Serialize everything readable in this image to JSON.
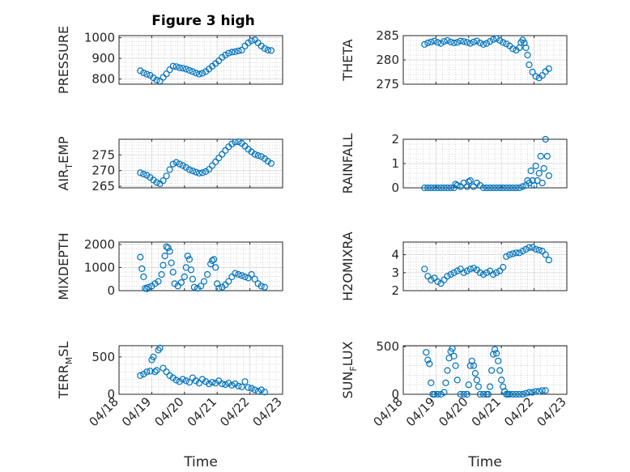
{
  "figure": {
    "title": "Figure 3 high"
  },
  "colors": {
    "marker": "#0072BD",
    "axes": "#262626"
  },
  "chart_data": [
    {
      "type": "scatter",
      "panel": "top-left",
      "title": "Figure 3 high",
      "ylabel": "PRESSURE",
      "ylim": [
        775,
        1010
      ],
      "yticks": [
        800,
        900,
        1000
      ],
      "xlim": [
        "04/18",
        "04/23"
      ],
      "x_tick_labels": [],
      "grid": true,
      "marker": "open-circle",
      "t": [
        0.65,
        0.75,
        0.85,
        0.95,
        1.05,
        1.15,
        1.25,
        1.35,
        1.45,
        1.55,
        1.65,
        1.75,
        1.85,
        1.95,
        2.05,
        2.15,
        2.25,
        2.35,
        2.45,
        2.55,
        2.65,
        2.75,
        2.85,
        2.95,
        3.05,
        3.15,
        3.25,
        3.35,
        3.45,
        3.55,
        3.65,
        3.75,
        3.85,
        3.95,
        4.05,
        4.15,
        4.25,
        4.35,
        4.45,
        4.55,
        4.65
      ],
      "y": [
        840,
        830,
        823,
        818,
        806,
        795,
        790,
        808,
        825,
        845,
        862,
        860,
        855,
        852,
        848,
        842,
        836,
        829,
        824,
        828,
        836,
        848,
        862,
        875,
        888,
        905,
        916,
        925,
        930,
        932,
        936,
        940,
        960,
        975,
        985,
        990,
        975,
        960,
        948,
        940,
        938
      ]
    },
    {
      "type": "scatter",
      "panel": "top-right",
      "ylabel": "THETA",
      "ylim": [
        275,
        285
      ],
      "yticks": [
        275,
        280,
        285
      ],
      "xlim": [
        "04/18",
        "04/23"
      ],
      "x_tick_labels": [],
      "grid": true,
      "marker": "open-circle",
      "t": [
        0.65,
        0.75,
        0.85,
        0.95,
        1.05,
        1.15,
        1.25,
        1.35,
        1.45,
        1.55,
        1.65,
        1.75,
        1.85,
        1.95,
        2.05,
        2.15,
        2.25,
        2.35,
        2.45,
        2.55,
        2.65,
        2.75,
        2.85,
        2.95,
        3.05,
        3.15,
        3.25,
        3.35,
        3.45,
        3.55,
        3.6,
        3.65,
        3.7,
        3.75,
        3.8,
        3.85,
        3.95,
        4.05,
        4.15,
        4.25,
        4.35,
        4.45
      ],
      "y": [
        283.2,
        283.5,
        283.7,
        283.9,
        283.6,
        283.4,
        283.8,
        284.0,
        283.7,
        283.5,
        283.6,
        283.9,
        283.8,
        283.6,
        283.4,
        283.7,
        283.9,
        283.5,
        283.2,
        283.4,
        283.8,
        284.2,
        284.4,
        284.0,
        283.6,
        283.3,
        282.9,
        282.3,
        282.0,
        282.5,
        283.6,
        284.1,
        283.5,
        282.5,
        281.0,
        279.0,
        277.5,
        276.6,
        276.3,
        276.8,
        277.6,
        278.2
      ]
    },
    {
      "type": "scatter",
      "panel": "second-left",
      "ylabel": "AIR_TEMP",
      "ylim": [
        264.5,
        280
      ],
      "yticks": [
        265,
        270,
        275
      ],
      "xlim": [
        "04/18",
        "04/23"
      ],
      "x_tick_labels": [],
      "grid": true,
      "marker": "open-circle",
      "t": [
        0.65,
        0.75,
        0.85,
        0.95,
        1.05,
        1.15,
        1.25,
        1.35,
        1.45,
        1.55,
        1.65,
        1.75,
        1.85,
        1.95,
        2.05,
        2.15,
        2.25,
        2.35,
        2.45,
        2.55,
        2.65,
        2.75,
        2.85,
        2.95,
        3.05,
        3.15,
        3.25,
        3.35,
        3.45,
        3.55,
        3.65,
        3.75,
        3.85,
        3.95,
        4.05,
        4.15,
        4.25,
        4.35,
        4.45,
        4.55,
        4.65
      ],
      "y": [
        269.3,
        268.9,
        268.5,
        267.8,
        267.0,
        266.2,
        265.8,
        266.8,
        268.3,
        270.3,
        272.1,
        272.6,
        272.1,
        271.6,
        271.0,
        270.3,
        269.9,
        269.5,
        269.2,
        269.3,
        269.7,
        270.4,
        271.6,
        272.8,
        274.0,
        275.2,
        276.4,
        277.6,
        278.5,
        279.1,
        279.2,
        278.7,
        277.8,
        276.8,
        276.0,
        275.2,
        274.8,
        274.5,
        273.8,
        273.0,
        272.3
      ]
    },
    {
      "type": "scatter",
      "panel": "second-right",
      "ylabel": "RAINFALL",
      "ylim": [
        0,
        2
      ],
      "yticks": [
        0,
        1,
        2
      ],
      "xlim": [
        "04/18",
        "04/23"
      ],
      "x_tick_labels": [],
      "grid": true,
      "marker": "open-circle",
      "t": [
        0.65,
        0.75,
        0.85,
        0.95,
        1.05,
        1.15,
        1.25,
        1.35,
        1.45,
        1.55,
        1.6,
        1.65,
        1.75,
        1.85,
        1.95,
        2.0,
        2.05,
        2.15,
        2.25,
        2.35,
        2.45,
        2.55,
        2.65,
        2.75,
        2.85,
        2.95,
        3.05,
        3.15,
        3.25,
        3.35,
        3.45,
        3.55,
        3.65,
        3.75,
        3.8,
        3.85,
        3.9,
        3.95,
        4.0,
        4.05,
        4.1,
        4.15,
        4.2,
        4.25,
        4.3,
        4.35,
        4.4,
        4.45
      ],
      "y": [
        0,
        0,
        0,
        0,
        0,
        0,
        0,
        0,
        0,
        0,
        0.15,
        0.1,
        0.05,
        0.2,
        0.05,
        0.25,
        0.3,
        0.05,
        0.2,
        0.1,
        0,
        0,
        0,
        0,
        0,
        0,
        0,
        0,
        0,
        0,
        0,
        0,
        0.05,
        0.1,
        0.3,
        0.2,
        0.7,
        0.3,
        0.1,
        0.9,
        0.3,
        0.6,
        1.3,
        0.2,
        0.8,
        2.0,
        1.3,
        0.5
      ]
    },
    {
      "type": "scatter",
      "panel": "third-left",
      "ylabel": "MIXDEPTH",
      "ylim": [
        0,
        2100
      ],
      "yticks": [
        0,
        1000,
        2000
      ],
      "xlim": [
        "04/18",
        "04/23"
      ],
      "x_tick_labels": [],
      "grid": true,
      "marker": "open-circle",
      "t": [
        0.65,
        0.7,
        0.75,
        0.8,
        0.85,
        0.9,
        1.0,
        1.1,
        1.2,
        1.3,
        1.35,
        1.4,
        1.45,
        1.5,
        1.55,
        1.6,
        1.65,
        1.7,
        1.8,
        1.9,
        2.0,
        2.05,
        2.1,
        2.15,
        2.2,
        2.25,
        2.3,
        2.4,
        2.5,
        2.6,
        2.7,
        2.8,
        2.85,
        2.9,
        2.95,
        3.0,
        3.05,
        3.15,
        3.25,
        3.35,
        3.45,
        3.55,
        3.65,
        3.75,
        3.85,
        3.95,
        4.05,
        4.15,
        4.25,
        4.35,
        4.45
      ],
      "y": [
        1450,
        950,
        600,
        100,
        80,
        150,
        200,
        300,
        400,
        700,
        1100,
        1500,
        1900,
        1850,
        1700,
        1200,
        800,
        300,
        200,
        350,
        600,
        1000,
        1500,
        1350,
        900,
        500,
        150,
        100,
        200,
        400,
        700,
        1150,
        1300,
        1350,
        1000,
        300,
        100,
        150,
        250,
        400,
        600,
        750,
        700,
        650,
        600,
        550,
        700,
        500,
        300,
        200,
        150
      ]
    },
    {
      "type": "scatter",
      "panel": "third-right",
      "ylabel": "H2OMIXRA",
      "ylim": [
        2,
        4.7
      ],
      "yticks": [
        2,
        3,
        4
      ],
      "xlim": [
        "04/18",
        "04/23"
      ],
      "x_tick_labels": [],
      "grid": true,
      "marker": "open-circle",
      "t": [
        0.65,
        0.75,
        0.85,
        0.95,
        1.05,
        1.15,
        1.25,
        1.35,
        1.45,
        1.55,
        1.65,
        1.75,
        1.85,
        1.95,
        2.05,
        2.15,
        2.25,
        2.35,
        2.45,
        2.55,
        2.65,
        2.75,
        2.85,
        2.95,
        3.05,
        3.15,
        3.25,
        3.35,
        3.45,
        3.55,
        3.65,
        3.75,
        3.85,
        3.95,
        4.05,
        4.15,
        4.25,
        4.35,
        4.45
      ],
      "y": [
        3.2,
        2.8,
        2.6,
        2.7,
        2.5,
        2.4,
        2.6,
        2.8,
        2.9,
        3.0,
        3.1,
        3.2,
        3.0,
        3.1,
        3.2,
        3.25,
        3.15,
        3.0,
        2.9,
        3.0,
        3.1,
        2.9,
        3.0,
        3.1,
        3.3,
        3.9,
        4.0,
        4.05,
        4.1,
        4.1,
        4.2,
        4.3,
        4.4,
        4.4,
        4.3,
        4.25,
        4.2,
        4.0,
        3.7
      ]
    },
    {
      "type": "scatter",
      "panel": "bottom-left",
      "ylabel": "TERR_MSL",
      "ylim": [
        0,
        650
      ],
      "yticks": [
        0,
        500
      ],
      "xlim": [
        "04/18",
        "04/23"
      ],
      "x_tick_labels": [
        "04/18",
        "04/19",
        "04/20",
        "04/21",
        "04/22",
        "04/23"
      ],
      "xlabel": "Time",
      "grid": true,
      "marker": "open-circle",
      "t": [
        0.65,
        0.75,
        0.85,
        0.95,
        1.0,
        1.05,
        1.1,
        1.15,
        1.2,
        1.25,
        1.35,
        1.45,
        1.55,
        1.65,
        1.75,
        1.85,
        1.95,
        2.05,
        2.15,
        2.25,
        2.35,
        2.45,
        2.55,
        2.65,
        2.75,
        2.85,
        2.95,
        3.05,
        3.15,
        3.25,
        3.35,
        3.45,
        3.55,
        3.65,
        3.75,
        3.85,
        3.95,
        4.05,
        4.15,
        4.25,
        4.35,
        4.45
      ],
      "y": [
        250,
        270,
        300,
        310,
        460,
        500,
        300,
        320,
        590,
        620,
        350,
        300,
        250,
        220,
        190,
        170,
        200,
        180,
        160,
        220,
        180,
        150,
        200,
        170,
        140,
        160,
        150,
        180,
        140,
        130,
        150,
        120,
        140,
        110,
        100,
        170,
        90,
        80,
        60,
        40,
        60,
        30
      ]
    },
    {
      "type": "scatter",
      "panel": "bottom-right",
      "ylabel": "SUN_FLUX",
      "ylim": [
        0,
        510
      ],
      "yticks": [
        0,
        500
      ],
      "xlim": [
        "04/18",
        "04/23"
      ],
      "x_tick_labels": [
        "04/18",
        "04/19",
        "04/20",
        "04/21",
        "04/22",
        "04/23"
      ],
      "xlabel": "Time",
      "grid": true,
      "marker": "open-circle",
      "t": [
        0.7,
        0.75,
        0.8,
        0.85,
        0.9,
        0.95,
        1.05,
        1.15,
        1.25,
        1.3,
        1.35,
        1.4,
        1.45,
        1.5,
        1.55,
        1.6,
        1.65,
        1.75,
        1.85,
        1.95,
        2.0,
        2.05,
        2.1,
        2.15,
        2.2,
        2.25,
        2.3,
        2.35,
        2.45,
        2.55,
        2.6,
        2.65,
        2.7,
        2.75,
        2.8,
        2.85,
        2.9,
        2.95,
        3.0,
        3.05,
        3.1,
        3.15,
        3.2,
        3.25,
        3.35,
        3.45,
        3.55,
        3.65,
        3.75,
        3.85,
        3.95,
        4.05,
        4.15,
        4.25,
        4.35
      ],
      "y": [
        440,
        360,
        320,
        120,
        0,
        0,
        0,
        0,
        20,
        120,
        250,
        380,
        450,
        480,
        400,
        300,
        150,
        0,
        0,
        0,
        100,
        300,
        350,
        300,
        220,
        150,
        80,
        0,
        0,
        0,
        0,
        80,
        250,
        420,
        470,
        430,
        350,
        250,
        150,
        80,
        30,
        0,
        0,
        0,
        0,
        0,
        0,
        0,
        10,
        20,
        20,
        30,
        30,
        40,
        40
      ]
    }
  ]
}
